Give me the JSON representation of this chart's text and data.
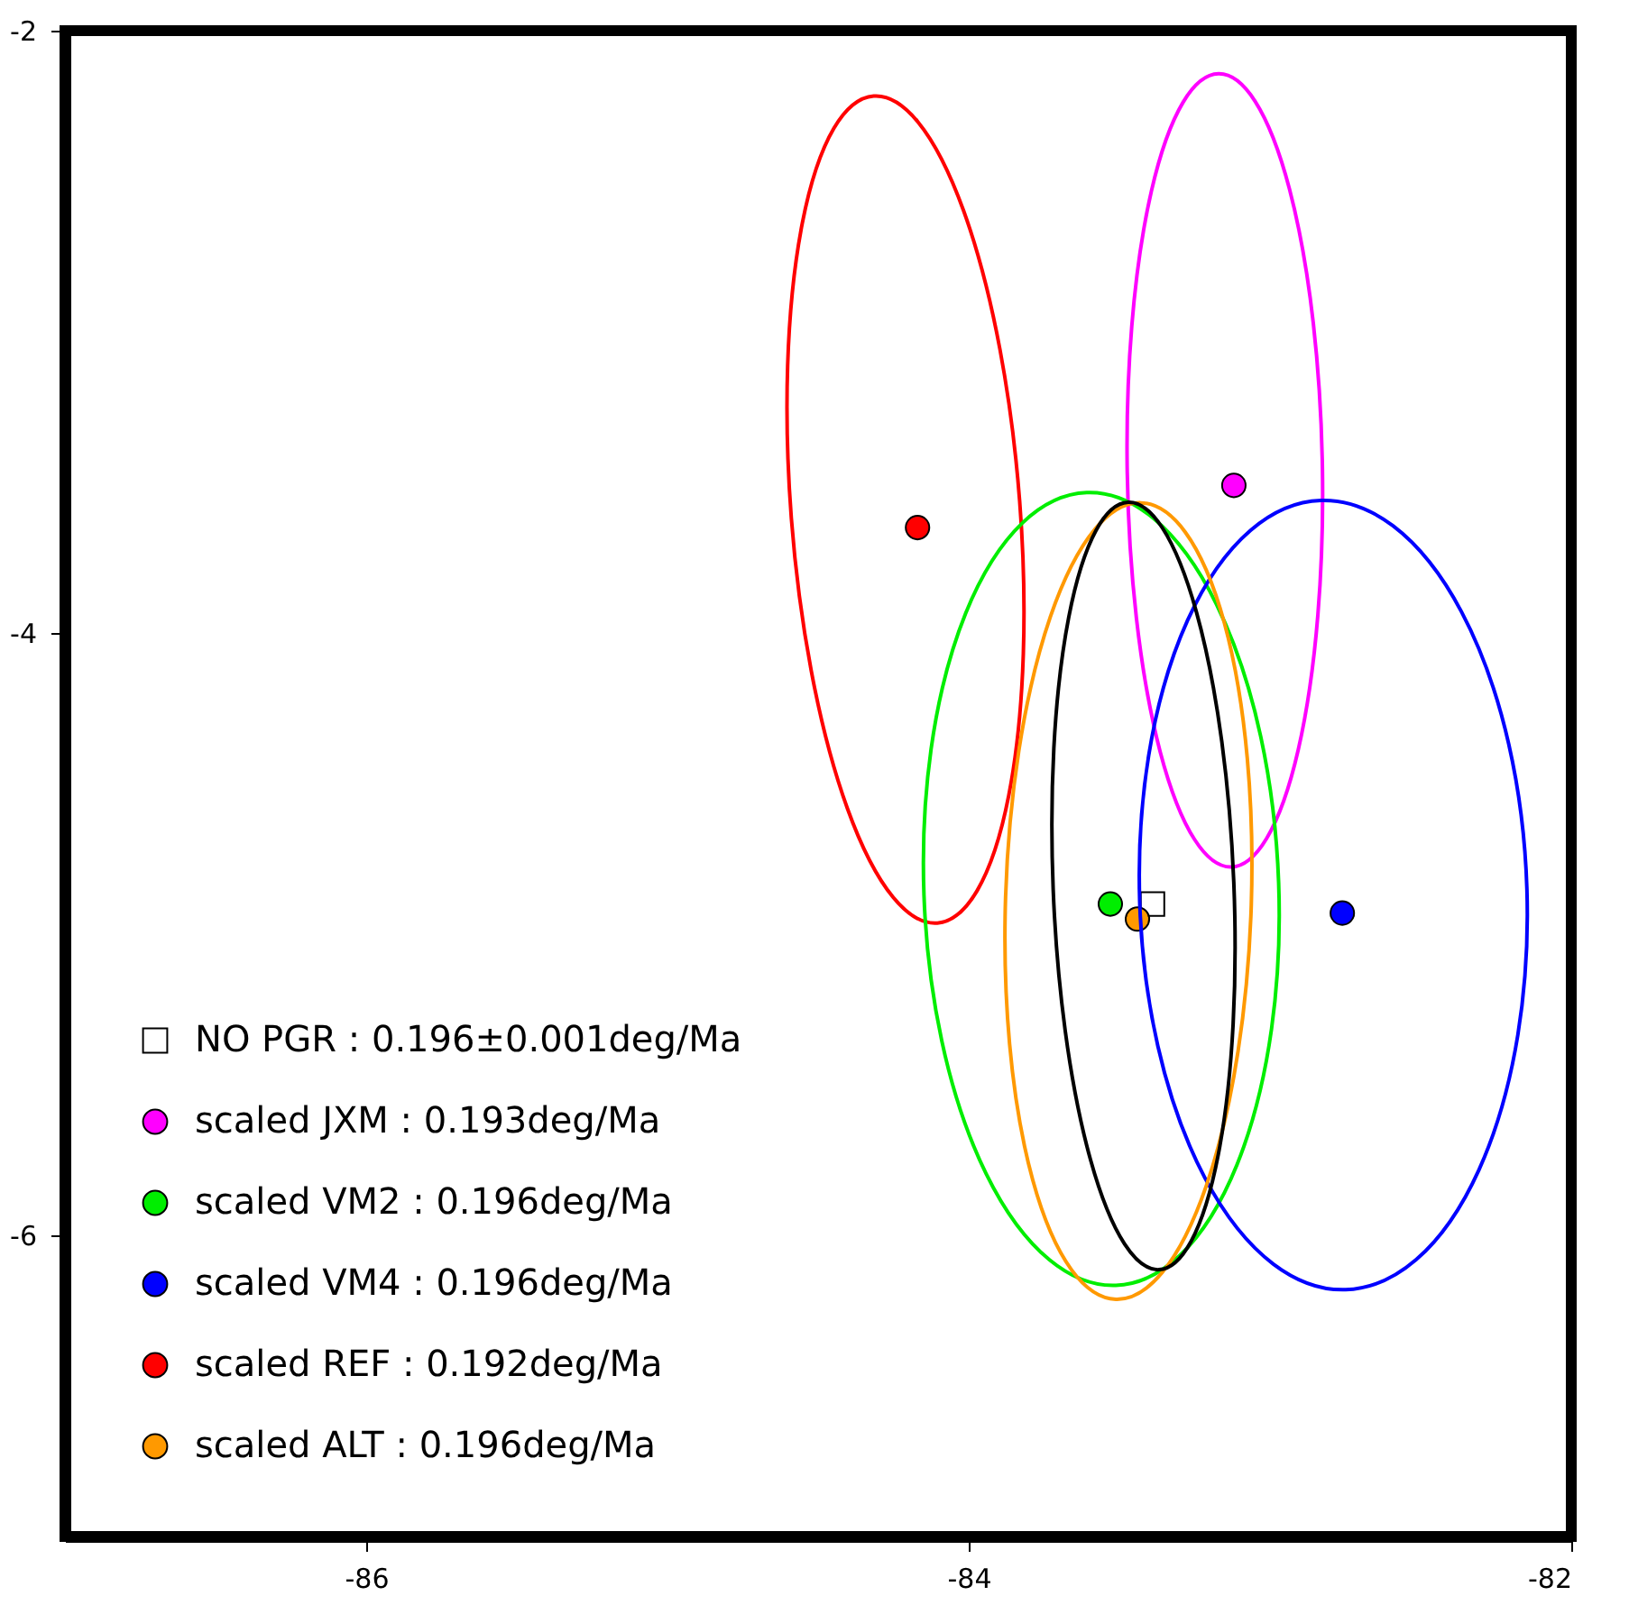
{
  "chart_data": {
    "type": "scatter",
    "xlim": [
      -87,
      -82
    ],
    "ylim": [
      -7,
      -2
    ],
    "xticks": [
      -86,
      -84,
      -82
    ],
    "yticks": [
      -6,
      -4,
      -2
    ],
    "grid": false,
    "legend": "bottom left",
    "series": [
      {
        "name": "NO PGR : 0.196±0.001deg/Ma",
        "color": "#ffffff",
        "marker": "square",
        "x": [
          -83.39
        ],
        "values": [
          -4.9
        ]
      },
      {
        "name": "scaled JXM : 0.193deg/Ma",
        "color": "#ff00ff",
        "marker": "circle",
        "x": [
          -83.12
        ],
        "values": [
          -3.51
        ]
      },
      {
        "name": "scaled VM2 : 0.196deg/Ma",
        "color": "#00ee00",
        "marker": "circle",
        "x": [
          -83.53
        ],
        "values": [
          -4.9
        ]
      },
      {
        "name": "scaled VM4 : 0.196deg/Ma",
        "color": "#0000ff",
        "marker": "circle",
        "x": [
          -82.76
        ],
        "values": [
          -4.93
        ]
      },
      {
        "name": "scaled REF : 0.192deg/Ma",
        "color": "#ff0000",
        "marker": "circle",
        "x": [
          -84.17
        ],
        "values": [
          -3.65
        ]
      },
      {
        "name": "scaled ALT : 0.196deg/Ma",
        "color": "#ff9900",
        "marker": "circle",
        "x": [
          -83.44
        ],
        "values": [
          -4.95
        ]
      }
    ]
  }
}
